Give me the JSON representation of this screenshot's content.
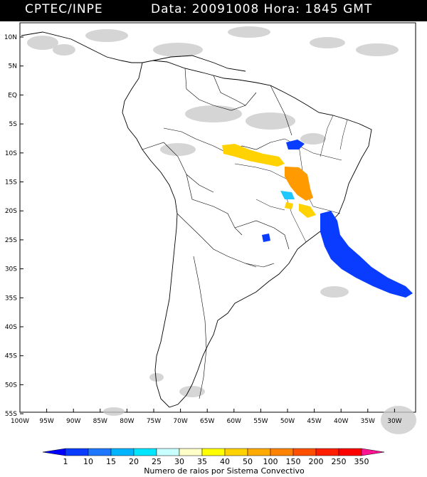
{
  "header": {
    "organization": "CPTEC/INPE",
    "date_label": "Data:",
    "date_value": "20091008",
    "time_label": "Hora:",
    "time_value": "1845",
    "timezone": "GMT"
  },
  "map": {
    "lat_range": [
      -56,
      14
    ],
    "lon_range": [
      -100,
      -26
    ],
    "lat_labels": [
      "10N",
      "5N",
      "EQ",
      "5S",
      "10S",
      "15S",
      "20S",
      "25S",
      "30S",
      "35S",
      "40S",
      "45S",
      "50S",
      "55S"
    ],
    "lon_labels": [
      "100W",
      "95W",
      "90W",
      "85W",
      "80W",
      "75W",
      "70W",
      "65W",
      "60W",
      "55W",
      "50W",
      "45W",
      "40W",
      "35W",
      "30W"
    ]
  },
  "colorbar": {
    "title": "Numero de raios por Sistema Convectivo",
    "levels": [
      "1",
      "10",
      "15",
      "20",
      "25",
      "30",
      "35",
      "40",
      "50",
      "100",
      "150",
      "200",
      "250",
      "350"
    ],
    "colors": [
      "#0000ff",
      "#0a3cff",
      "#1e78ff",
      "#00b4ff",
      "#00e6ff",
      "#c8ffff",
      "#ffffc8",
      "#ffff00",
      "#ffd200",
      "#ffaa00",
      "#ff8200",
      "#ff5000",
      "#ff1e00",
      "#ff0000",
      "#ff1493"
    ]
  },
  "legend_colors": {
    "cloud": "#c8c8c8",
    "blue": "#0a3cff",
    "cyan": "#1ec8ff",
    "yellow": "#ffd200",
    "orange": "#ff9a00"
  }
}
